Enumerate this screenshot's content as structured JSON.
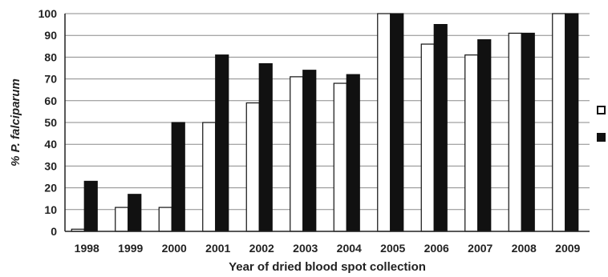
{
  "chart_data": {
    "type": "bar",
    "title": "",
    "xlabel": "Year of dried blood spot collection",
    "ylabel": "% P. falciparum",
    "ylim": [
      0,
      100
    ],
    "ytick_step": 10,
    "grid": true,
    "legend_position": "right",
    "categories": [
      "1998",
      "1999",
      "2000",
      "2001",
      "2002",
      "2003",
      "2004",
      "2005",
      "2006",
      "2007",
      "2008",
      "2009"
    ],
    "series": [
      {
        "values": [
          1,
          11,
          11,
          50,
          59,
          71,
          68,
          100,
          86,
          81,
          91,
          100
        ],
        "fill": "#ffffff",
        "stroke": "#111111"
      },
      {
        "values": [
          23,
          17,
          50,
          81,
          77,
          74,
          72,
          100,
          95,
          88,
          91,
          100
        ],
        "fill": "#111111",
        "stroke": "#111111"
      }
    ]
  }
}
